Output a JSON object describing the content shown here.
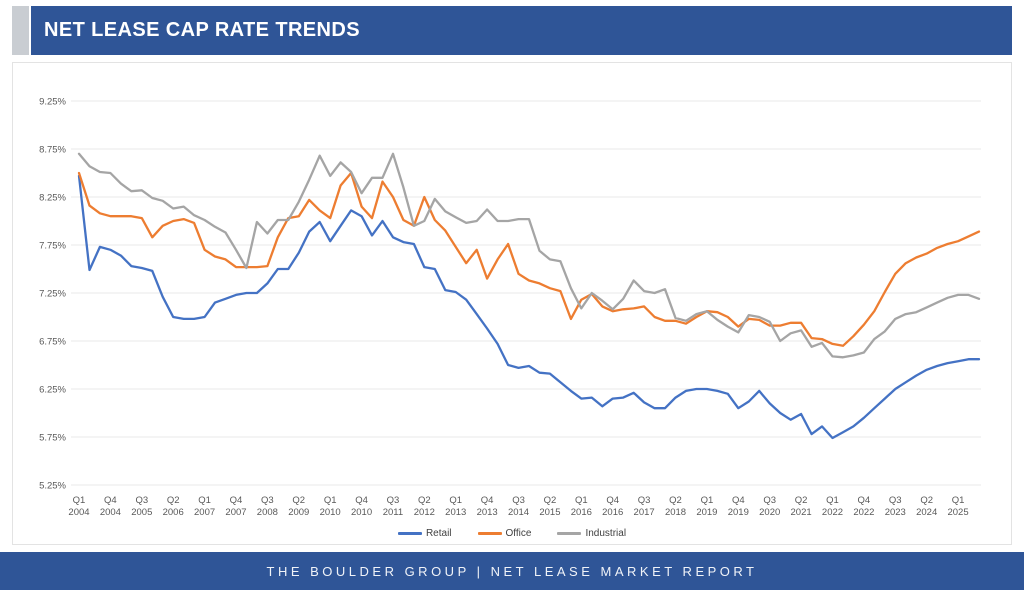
{
  "header": {
    "title": "NET LEASE CAP RATE TRENDS"
  },
  "footer": {
    "text": "THE BOULDER GROUP | NET LEASE MARKET REPORT"
  },
  "colors": {
    "header_blue": "#2F5597",
    "accent_gray": "#C9CDD2",
    "grid": "#E8E8E8",
    "axis_text": "#595959",
    "retail": "#4472C4",
    "office": "#ED7D31",
    "industrial": "#A5A5A5"
  },
  "chart_data": {
    "type": "line",
    "title": "NET LEASE CAP RATE TRENDS",
    "xlabel": "",
    "ylabel": "",
    "ylim": [
      5.25,
      9.25
    ],
    "y_tick_step": 0.5,
    "grid": true,
    "legend_position": "bottom",
    "y_ticks": [
      "9.25%",
      "8.75%",
      "8.25%",
      "7.75%",
      "7.25%",
      "6.75%",
      "6.25%",
      "5.75%",
      "5.25%"
    ],
    "x_tick_interval_quarters": 3,
    "x_tick_labels": [
      "Q1 2004",
      "Q4 2004",
      "Q3 2005",
      "Q2 2006",
      "Q1 2007",
      "Q4 2007",
      "Q3 2008",
      "Q2 2009",
      "Q1 2010",
      "Q4 2010",
      "Q3 2011",
      "Q2 2012",
      "Q1 2013",
      "Q4 2013",
      "Q3 2014",
      "Q2 2015",
      "Q1 2016",
      "Q4 2016",
      "Q3 2017",
      "Q2 2018",
      "Q1 2019",
      "Q4 2019",
      "Q3 2020",
      "Q2 2021",
      "Q1 2022",
      "Q4 2022",
      "Q3 2023",
      "Q2 2024",
      "Q1 2025"
    ],
    "x_range_quarters": {
      "first": "Q1 2004",
      "last": "Q3 2025",
      "count": 87
    },
    "series": [
      {
        "name": "Retail",
        "color": "#4472C4",
        "values": [
          8.47,
          7.49,
          7.73,
          7.7,
          7.64,
          7.53,
          7.51,
          7.48,
          7.21,
          7.0,
          6.98,
          6.98,
          7.0,
          7.15,
          7.19,
          7.23,
          7.25,
          7.25,
          7.35,
          7.5,
          7.5,
          7.67,
          7.89,
          7.99,
          7.79,
          7.95,
          8.11,
          8.05,
          7.85,
          8.0,
          7.83,
          7.78,
          7.76,
          7.52,
          7.5,
          7.28,
          7.26,
          7.18,
          7.03,
          6.88,
          6.72,
          6.5,
          6.47,
          6.49,
          6.42,
          6.41,
          6.32,
          6.23,
          6.15,
          6.16,
          6.07,
          6.15,
          6.16,
          6.21,
          6.11,
          6.05,
          6.05,
          6.16,
          6.23,
          6.25,
          6.25,
          6.23,
          6.2,
          6.05,
          6.12,
          6.23,
          6.1,
          6.0,
          5.93,
          5.99,
          5.78,
          5.86,
          5.74,
          5.8,
          5.86,
          5.95,
          6.05,
          6.15,
          6.25,
          6.32,
          6.39,
          6.45,
          6.49,
          6.52,
          6.54,
          6.56,
          6.56
        ]
      },
      {
        "name": "Office",
        "color": "#ED7D31",
        "values": [
          8.5,
          8.16,
          8.08,
          8.05,
          8.05,
          8.05,
          8.03,
          7.83,
          7.95,
          8.0,
          8.02,
          7.98,
          7.7,
          7.63,
          7.6,
          7.52,
          7.52,
          7.52,
          7.53,
          7.83,
          8.03,
          8.05,
          8.22,
          8.11,
          8.03,
          8.37,
          8.5,
          8.15,
          8.03,
          8.41,
          8.25,
          8.01,
          7.95,
          8.25,
          8.01,
          7.9,
          7.73,
          7.56,
          7.7,
          7.4,
          7.6,
          7.76,
          7.45,
          7.38,
          7.35,
          7.3,
          7.27,
          6.98,
          7.18,
          7.24,
          7.11,
          7.06,
          7.08,
          7.09,
          7.11,
          7.0,
          6.96,
          6.96,
          6.93,
          7.0,
          7.06,
          7.05,
          7.0,
          6.9,
          6.98,
          6.97,
          6.91,
          6.91,
          6.94,
          6.94,
          6.78,
          6.77,
          6.72,
          6.7,
          6.8,
          6.92,
          7.06,
          7.26,
          7.45,
          7.56,
          7.62,
          7.66,
          7.72,
          7.76,
          7.79,
          7.84,
          7.89
        ]
      },
      {
        "name": "Industrial",
        "color": "#A5A5A5",
        "values": [
          8.7,
          8.57,
          8.51,
          8.5,
          8.39,
          8.31,
          8.32,
          8.24,
          8.21,
          8.13,
          8.15,
          8.06,
          8.01,
          7.94,
          7.88,
          7.7,
          7.51,
          7.99,
          7.87,
          8.01,
          8.01,
          8.2,
          8.43,
          8.68,
          8.47,
          8.61,
          8.51,
          8.29,
          8.45,
          8.45,
          8.7,
          8.35,
          7.95,
          8.0,
          8.23,
          8.1,
          8.04,
          7.98,
          8.0,
          8.12,
          8.0,
          8.0,
          8.02,
          8.02,
          7.69,
          7.6,
          7.58,
          7.3,
          7.09,
          7.25,
          7.17,
          7.08,
          7.19,
          7.38,
          7.27,
          7.25,
          7.29,
          6.99,
          6.96,
          7.03,
          7.06,
          6.97,
          6.9,
          6.84,
          7.02,
          7.0,
          6.95,
          6.75,
          6.83,
          6.86,
          6.69,
          6.73,
          6.59,
          6.58,
          6.6,
          6.63,
          6.77,
          6.85,
          6.98,
          7.03,
          7.05,
          7.1,
          7.15,
          7.2,
          7.23,
          7.23,
          7.19
        ]
      }
    ]
  }
}
